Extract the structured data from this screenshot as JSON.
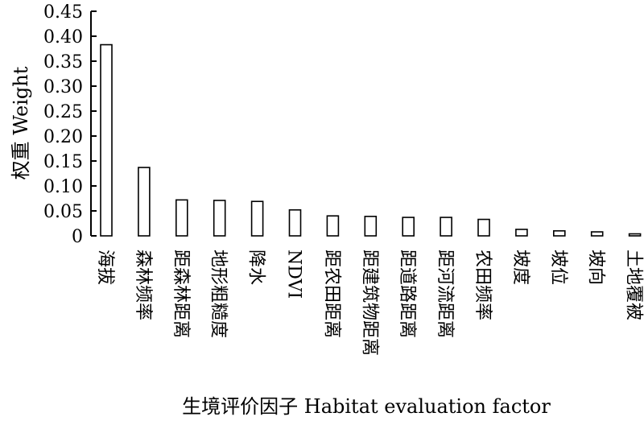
{
  "chart_data": {
    "type": "bar",
    "title": "",
    "xlabel": "生境评价因子 Habitat evaluation factor",
    "ylabel": "权重 Weight",
    "ylim": [
      0,
      0.45
    ],
    "yticks": [
      0,
      0.05,
      0.1,
      0.15,
      0.2,
      0.25,
      0.3,
      0.35,
      0.4,
      0.45
    ],
    "ytick_labels": [
      "0",
      "0.05",
      "0.10",
      "0.15",
      "0.20",
      "0.25",
      "0.30",
      "0.35",
      "0.40",
      "0.45"
    ],
    "categories": [
      "海拔",
      "森林频率",
      "距森林距离",
      "地形粗糙度",
      "降水",
      "NDVI",
      "距农田距离",
      "距建筑物距离",
      "距道路距离",
      "距河流距离",
      "农田频率",
      "坡度",
      "坡位",
      "坡向",
      "土地覆被"
    ],
    "values": [
      0.383,
      0.137,
      0.072,
      0.071,
      0.069,
      0.052,
      0.04,
      0.039,
      0.037,
      0.037,
      0.033,
      0.013,
      0.01,
      0.008,
      0.004
    ],
    "grid": false,
    "legend": "none",
    "bar_fill": "#ffffff",
    "bar_stroke": "#000000"
  }
}
